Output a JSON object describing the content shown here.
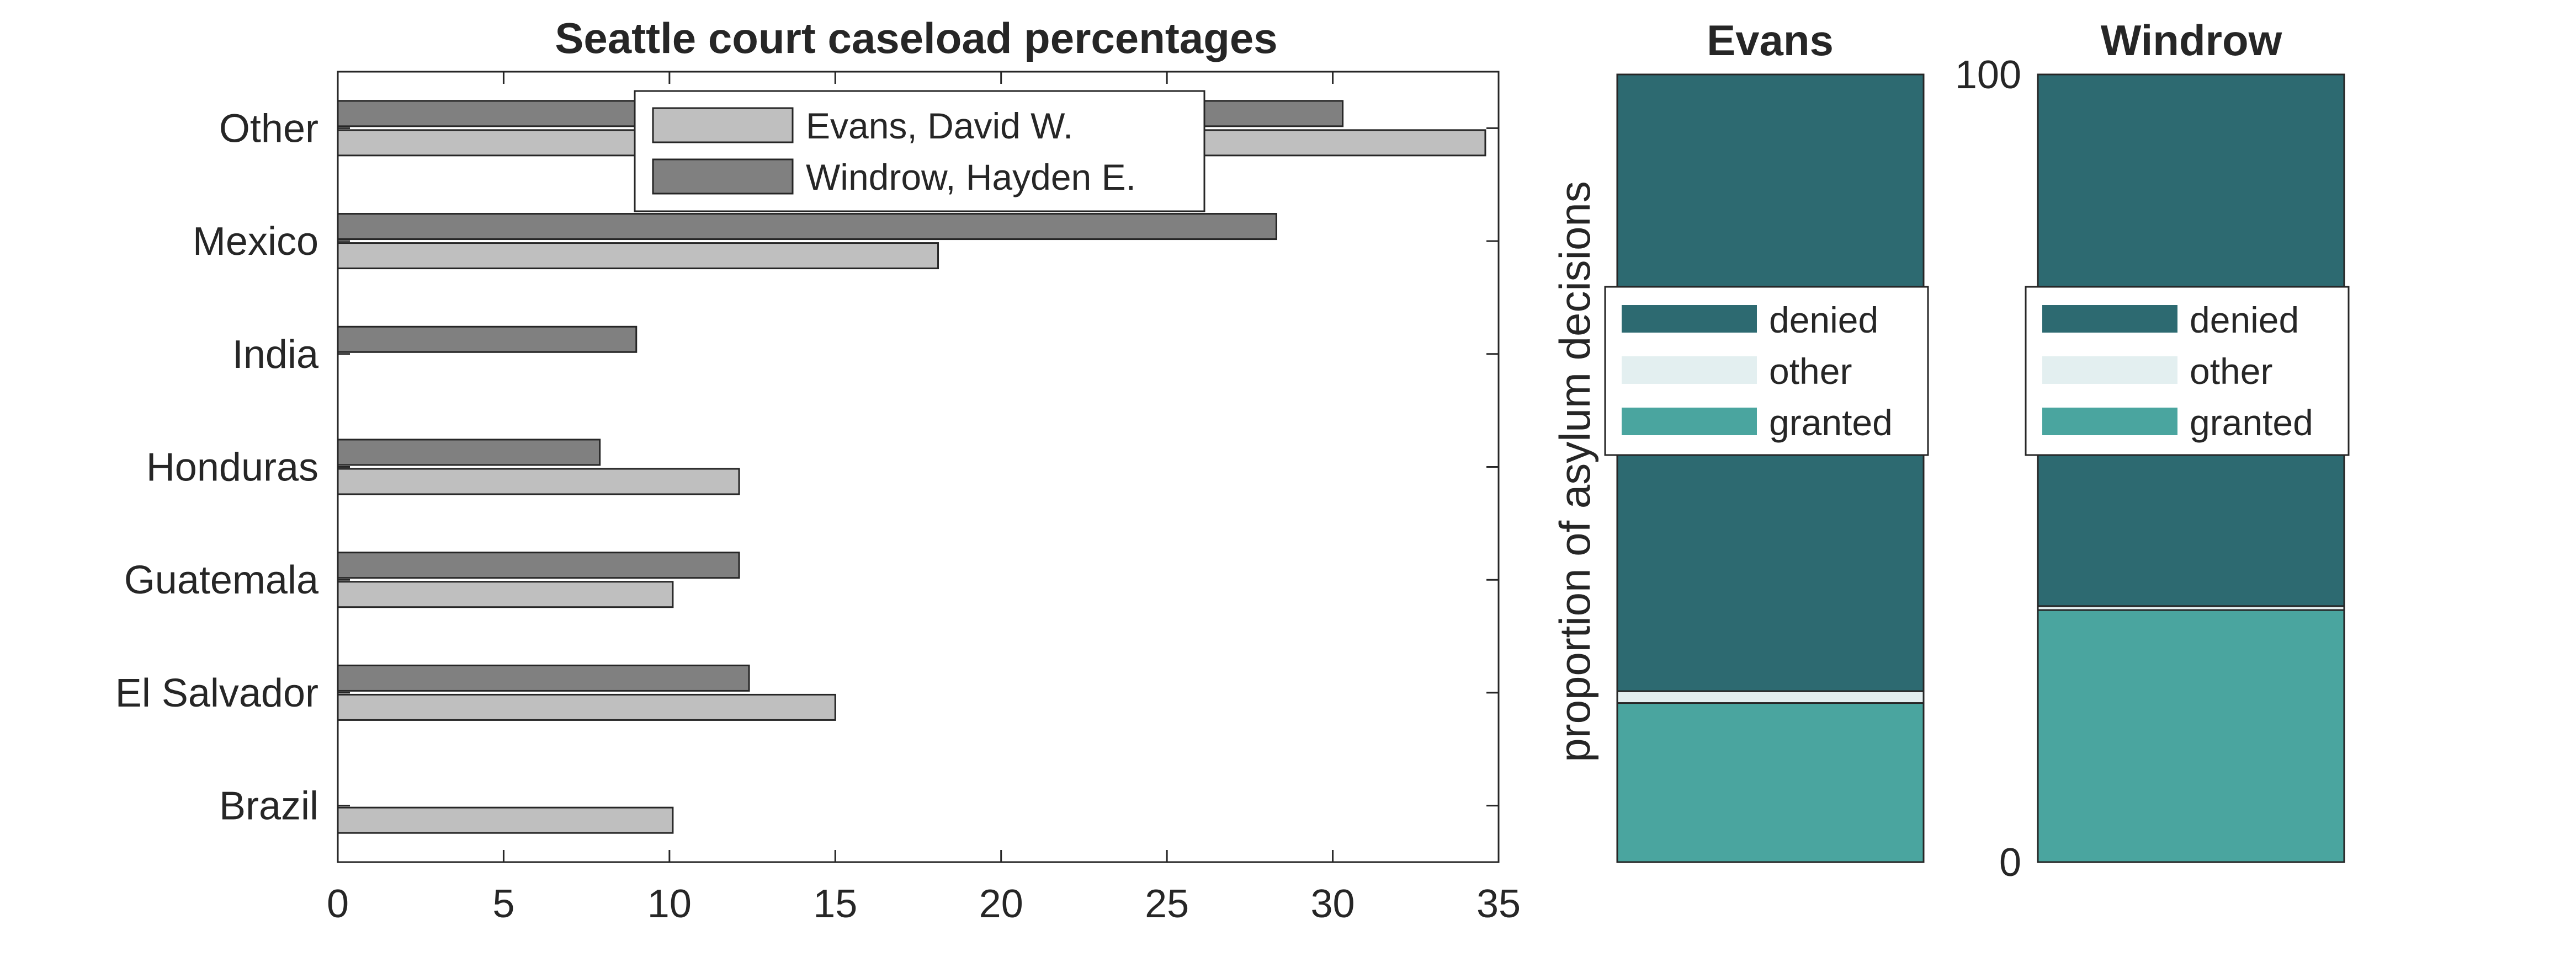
{
  "charts": {
    "left": {
      "title": "Seattle court caseload percentages",
      "legend": [
        "Evans, David W.",
        "Windrow, Hayden E."
      ]
    },
    "evans": {
      "title": "Evans",
      "legend": [
        "denied",
        "other",
        "granted"
      ]
    },
    "windrow": {
      "title": "Windrow",
      "legend": [
        "denied",
        "other",
        "granted"
      ]
    },
    "shared": {
      "ylabel": "proportion of asylum decisions"
    }
  },
  "chart_data": [
    {
      "type": "bar",
      "orientation": "horizontal",
      "title": "Seattle court caseload percentages",
      "categories": [
        "Brazil",
        "El Salvador",
        "Guatemala",
        "Honduras",
        "India",
        "Mexico",
        "Other"
      ],
      "series": [
        {
          "name": "Evans, David W.",
          "values": [
            10.1,
            15.0,
            10.1,
            12.1,
            0,
            18.1,
            34.6
          ],
          "color": "#bfbfbf"
        },
        {
          "name": "Windrow, Hayden E.",
          "values": [
            0,
            12.4,
            12.1,
            7.9,
            9.0,
            28.3,
            30.3
          ],
          "color": "#808080"
        }
      ],
      "xlim": [
        0,
        35
      ],
      "xticks": [
        0,
        5,
        10,
        15,
        20,
        25,
        30,
        35
      ],
      "xlabel": "",
      "ylabel": "",
      "legend_position": "top-center",
      "grid": false
    },
    {
      "type": "bar",
      "stacked": true,
      "title": "Evans",
      "ylabel": "proportion of asylum decisions",
      "series": [
        {
          "name": "granted",
          "value": 20.2,
          "color": "#4aa59f"
        },
        {
          "name": "other",
          "value": 1.5,
          "color": "#e3eff0"
        },
        {
          "name": "denied",
          "value": 78.3,
          "color": "#2d6a71"
        }
      ],
      "ylim": [
        0,
        100
      ],
      "legend_position": "middle"
    },
    {
      "type": "bar",
      "stacked": true,
      "title": "Windrow",
      "series": [
        {
          "name": "granted",
          "value": 32.0,
          "color": "#4aa59f"
        },
        {
          "name": "other",
          "value": 0.5,
          "color": "#e3eff0"
        },
        {
          "name": "denied",
          "value": 67.5,
          "color": "#2d6a71"
        }
      ],
      "ylim": [
        0,
        100
      ],
      "yticks": [
        0,
        100
      ],
      "legend_position": "middle"
    }
  ]
}
